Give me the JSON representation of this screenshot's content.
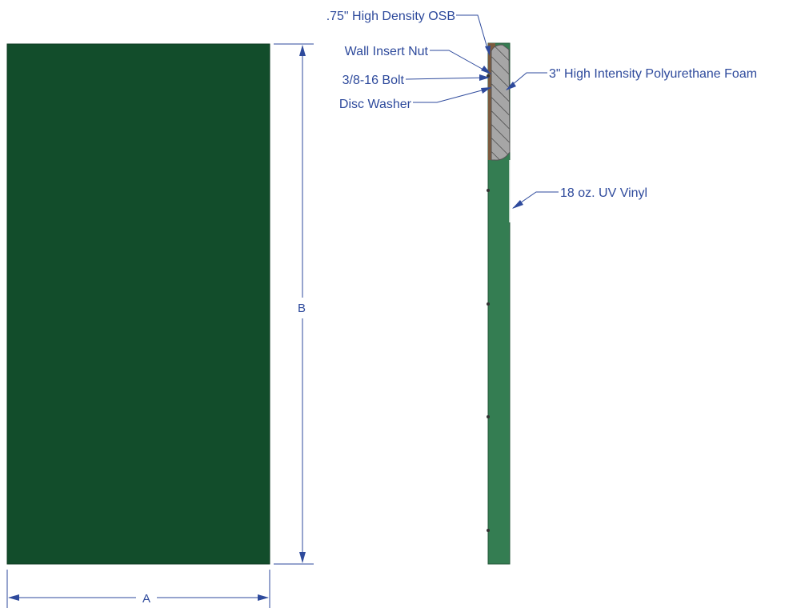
{
  "labels": {
    "osb": ".75\" High Density OSB",
    "nut": "Wall Insert Nut",
    "bolt": "3/8-16 Bolt",
    "washer": "Disc Washer",
    "foam": "3\" High Intensity Polyurethane Foam",
    "vinyl": "18 oz. UV Vinyl"
  },
  "dimensions": {
    "width": "A",
    "height": "B"
  },
  "colors": {
    "panel_front": "#124d2b",
    "panel_side": "#347d52",
    "osb": "#7c5b3e",
    "foam": "#a6a6a6",
    "annotation": "#2e4a9c"
  }
}
